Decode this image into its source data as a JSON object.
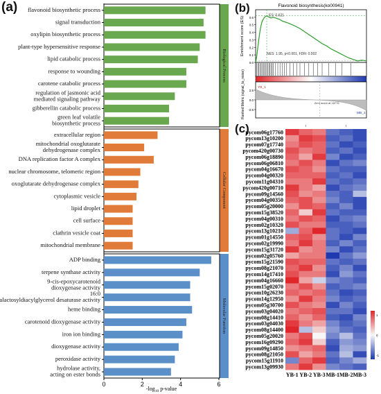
{
  "panel_labels": {
    "a": "(a)",
    "b": "(b)",
    "c": "(c)"
  },
  "colors": {
    "bp": "#6aa84f",
    "cc": "#e07b39",
    "mf": "#5b8fc7",
    "es_line": "#2e9e2e",
    "heat_high": "#e0262b",
    "heat_mid": "#f7f7f7",
    "heat_low": "#1f3ab0"
  },
  "chart_data": [
    {
      "type": "bar",
      "orientation": "horizontal",
      "xlabel": "-log10 p-value",
      "xlim": [
        0,
        6
      ],
      "xticks": [
        "0",
        "2",
        "4",
        "6"
      ],
      "groups": [
        {
          "name": "Biological Process",
          "categories": [
            "flavonoid biosynthetic process",
            "signal transduction",
            "oxylipin biosynthetic process",
            "plant-type hypersensitive response",
            "lipid catabolic process",
            "response to wounding",
            "carotene catabolic process",
            "regulation of jasmonic acid mediated signaling pathway",
            "gibberellin catabolic process",
            "green leaf volatile biosynthetic process"
          ],
          "values": [
            5.3,
            5.2,
            5.3,
            5.0,
            4.9,
            4.3,
            4.3,
            3.7,
            3.4,
            3.4
          ]
        },
        {
          "name": "Cellular Component",
          "categories": [
            "extracellular region",
            "mitochondrial oxoglutarate dehydrogenase complex",
            "DNA replication factor A complex",
            "nuclear chromosome, telomeric region",
            "oxoglutarate dehydrogenase complex",
            "cytoplasmic vesicle",
            "lipid droplet",
            "cell surface",
            "clathrin vesicle coat",
            "mitochondrial membrane"
          ],
          "values": [
            2.8,
            2.1,
            2.6,
            1.9,
            1.8,
            1.7,
            1.5,
            1.5,
            1.5,
            1.5
          ]
        },
        {
          "name": "Molecular Function",
          "categories": [
            "ADP binding",
            "terpene synthase activity",
            "9-cis-epoxycarotenoid dioxygenase activity",
            "16:0 monogalactosyldiacylglycerol desaturase activity",
            "heme binding",
            "carotenoid dioxygenase activity",
            "iron ion binding",
            "dioxygenase activity",
            "peroxidase activity",
            "hydrolase activity, acting on ester bonds"
          ],
          "values": [
            5.6,
            5.0,
            4.5,
            4.5,
            4.6,
            4.3,
            4.1,
            3.9,
            3.7,
            3.5
          ]
        }
      ]
    },
    {
      "type": "line",
      "title": "Flavonoid biosynthesis(ko00941)",
      "ylabel": "Enrichment score (ES)",
      "ylim": [
        0,
        0.7
      ],
      "yticks": [
        "0.0",
        "0.1",
        "0.2",
        "0.3",
        "0.4",
        "0.5",
        "0.6"
      ],
      "peak_label": "ES: 0.621",
      "stats": "NES: 1.95, p<0.001, FDR: 0.002",
      "x": [
        0,
        1,
        2,
        3,
        4,
        5,
        6,
        8,
        10,
        12,
        14,
        16,
        18,
        20,
        22,
        24,
        26,
        28,
        30,
        33,
        36,
        40,
        44,
        48,
        52,
        56,
        60,
        64,
        68,
        72,
        76,
        80,
        84,
        88,
        92,
        96,
        100
      ],
      "y": [
        0,
        0.08,
        0.2,
        0.32,
        0.42,
        0.5,
        0.55,
        0.6,
        0.62,
        0.6,
        0.59,
        0.6,
        0.59,
        0.58,
        0.57,
        0.55,
        0.54,
        0.53,
        0.52,
        0.5,
        0.48,
        0.45,
        0.41,
        0.37,
        0.33,
        0.29,
        0.25,
        0.22,
        0.18,
        0.15,
        0.12,
        0.09,
        0.06,
        0.04,
        0.02,
        0.03,
        0.02
      ],
      "hit_positions": [
        1,
        2,
        3,
        4,
        5,
        6,
        7,
        8,
        9,
        10,
        11,
        12,
        13,
        14,
        15,
        16,
        18,
        20,
        22,
        24,
        26,
        28,
        31,
        34,
        37,
        40,
        44,
        48,
        52,
        56,
        60,
        66,
        72,
        78,
        86
      ],
      "metric_ylabel": "Ranked Metric (signal_to_noise)",
      "metric_yticks": [
        "2.5",
        "0.0",
        "-2.5"
      ],
      "pos_label": "YB_1",
      "neg_label": "MB_1",
      "zero_label": "Zero score at 18776"
    },
    {
      "type": "heatmap",
      "columns": [
        "YB-1",
        "YB-2",
        "YB-3",
        "MB-1",
        "MB-2",
        "MB-3"
      ],
      "rows": [
        "pycom06g17760",
        "pycom13g10200",
        "pycom07g17740",
        "pycom420g00730",
        "pycom06g18890",
        "pycom06g06810",
        "pycom04g16670",
        "pycom04g00320",
        "pycom11g04310",
        "pycom420g00710",
        "pycom09g14560",
        "pycom04g00350",
        "pycom05g20000",
        "pycom15g38520",
        "pycom04g00310",
        "pycom02g10320",
        "pycom13g10210",
        "pycom01g14550",
        "pycom02g19990",
        "pycom15g31720",
        "pycom02g05760",
        "pycom15g21590",
        "pycom08g21070",
        "pycom14g17410",
        "pycom04g16660",
        "pycom15g02070",
        "pycom10g26230",
        "pycom14g12950",
        "pycom05g30700",
        "pycom03g04020",
        "pycom08g14410",
        "pycom03g04030",
        "pycom08g14400",
        "pycom05g20020",
        "pycom16g09290",
        "pycom09g14850",
        "pycom08g21050",
        "pycom15g11910",
        "pycom13g09930"
      ],
      "legend_ticks": [
        "1",
        "0",
        "-1"
      ],
      "values": [
        [
          0.9,
          0.7,
          0.6,
          -0.7,
          -0.8,
          -0.9
        ],
        [
          0.5,
          0.9,
          0.8,
          -0.8,
          -0.7,
          -0.9
        ],
        [
          0.6,
          0.8,
          0.7,
          -0.7,
          -0.9,
          -0.8
        ],
        [
          0.8,
          0.6,
          0.7,
          -0.8,
          -0.7,
          -0.9
        ],
        [
          0.7,
          0.4,
          0.9,
          -0.6,
          -0.9,
          -0.8
        ],
        [
          0.6,
          0.8,
          0.6,
          -0.9,
          -0.7,
          -0.6
        ],
        [
          0.8,
          0.7,
          0.5,
          -0.7,
          -0.8,
          -0.8
        ],
        [
          0.7,
          0.7,
          0.7,
          -0.8,
          -0.7,
          -0.9
        ],
        [
          0.6,
          0.6,
          0.9,
          -0.7,
          -0.8,
          -0.7
        ],
        [
          0.9,
          0.6,
          0.4,
          -0.9,
          -0.7,
          -0.6
        ],
        [
          0.8,
          0.5,
          0.6,
          -0.7,
          -0.8,
          -0.3
        ],
        [
          0.7,
          0.8,
          0.5,
          -0.6,
          -0.8,
          -0.9
        ],
        [
          0.5,
          0.8,
          0.7,
          -0.8,
          -0.6,
          -0.9
        ],
        [
          0.7,
          0.2,
          0.9,
          -0.7,
          -0.8,
          -0.8
        ],
        [
          0.6,
          0.8,
          0.7,
          -0.9,
          -0.7,
          -0.6
        ],
        [
          0.8,
          0.6,
          0.6,
          -0.8,
          -0.8,
          -0.7
        ],
        [
          -0.4,
          0.7,
          1.0,
          -0.7,
          -0.8,
          -0.9
        ],
        [
          0.7,
          0.8,
          0.5,
          -0.7,
          -0.9,
          -0.6
        ],
        [
          0.6,
          0.9,
          0.6,
          -0.8,
          -0.6,
          -0.8
        ],
        [
          0.9,
          0.5,
          0.6,
          -0.6,
          -0.9,
          -0.7
        ],
        [
          0.4,
          0.6,
          0.6,
          -1.0,
          -0.7,
          -0.5
        ],
        [
          0.8,
          0.7,
          0.7,
          -0.7,
          -0.8,
          -0.7
        ],
        [
          0.7,
          0.9,
          0.5,
          -0.8,
          -0.6,
          -0.9
        ],
        [
          0.8,
          0.6,
          0.6,
          -0.9,
          -0.5,
          -0.7
        ],
        [
          1.0,
          0.4,
          -0.2,
          -0.6,
          -0.7,
          -0.8
        ],
        [
          0.6,
          0.8,
          0.5,
          -0.8,
          -0.7,
          -0.6
        ],
        [
          0.7,
          0.6,
          0.7,
          -0.7,
          -0.9,
          -0.8
        ],
        [
          0.5,
          0.9,
          0.6,
          -0.6,
          -0.8,
          -0.7
        ],
        [
          0.8,
          0.6,
          0.5,
          -0.9,
          -0.6,
          -0.8
        ],
        [
          0.6,
          0.7,
          0.8,
          -0.7,
          -0.7,
          -0.9
        ],
        [
          0.7,
          0.5,
          0.7,
          -0.8,
          -0.9,
          -0.6
        ],
        [
          0.9,
          0.6,
          0.4,
          -0.6,
          -0.8,
          -0.7
        ],
        [
          1.0,
          -0.3,
          0.2,
          -0.5,
          -0.7,
          -0.8
        ],
        [
          0.6,
          0.8,
          0.0,
          -0.6,
          -0.3,
          -0.7
        ],
        [
          0.7,
          0.9,
          0.2,
          -0.8,
          -0.5,
          -0.6
        ],
        [
          0.5,
          0.6,
          0.7,
          -0.9,
          -0.4,
          -0.5
        ],
        [
          0.8,
          0.4,
          0.6,
          -0.7,
          -0.3,
          -0.9
        ],
        [
          -0.6,
          0.7,
          0.9,
          -0.8,
          -0.6,
          -0.4
        ],
        [
          0.6,
          0.9,
          0.5,
          -0.6,
          -0.7,
          -0.8
        ]
      ]
    }
  ]
}
